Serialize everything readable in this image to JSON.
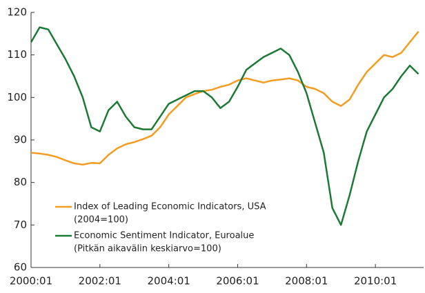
{
  "chart_data": {
    "type": "line",
    "x": [
      2000,
      2000.25,
      2000.5,
      2000.75,
      2001,
      2001.25,
      2001.5,
      2001.75,
      2002,
      2002.25,
      2002.5,
      2002.75,
      2003,
      2003.25,
      2003.5,
      2003.75,
      2004,
      2004.25,
      2004.5,
      2004.75,
      2005,
      2005.25,
      2005.5,
      2005.75,
      2006,
      2006.25,
      2006.5,
      2006.75,
      2007,
      2007.25,
      2007.5,
      2007.75,
      2008,
      2008.25,
      2008.5,
      2008.75,
      2009,
      2009.25,
      2009.5,
      2009.75,
      2010,
      2010.25,
      2010.5,
      2010.75,
      2011,
      2011.25
    ],
    "series": [
      {
        "name": "Index of Leading Economic Indicators, USA",
        "note": "(2004=100)",
        "color": "#f39c1f",
        "values": [
          87,
          86.8,
          86.5,
          86,
          85.2,
          84.5,
          84.2,
          84.6,
          84.5,
          86.5,
          88,
          89,
          89.5,
          90.2,
          91,
          93,
          96,
          98,
          100,
          100.8,
          101.5,
          101.8,
          102.5,
          103,
          104,
          104.5,
          104,
          103.5,
          104,
          104.2,
          104.5,
          104,
          102.5,
          102,
          101,
          99,
          98,
          99.5,
          103,
          106,
          108,
          110,
          109.5,
          110.5,
          113,
          115.5
        ]
      },
      {
        "name": "Economic Sentiment Indicator, Euroalue",
        "note": "(Pitkän aikavälin keskiarvo=100)",
        "color": "#1a7a34",
        "values": [
          113,
          116.5,
          116,
          112.5,
          109,
          105,
          100,
          93,
          92,
          97,
          99,
          95.5,
          93,
          92.5,
          92.5,
          95.5,
          98.5,
          99.5,
          100.5,
          101.5,
          101.5,
          100,
          97.5,
          99,
          102.5,
          106.5,
          108,
          109.5,
          110.5,
          111.5,
          110,
          106,
          101,
          94,
          87,
          74,
          70,
          77,
          85,
          92,
          96,
          100,
          102,
          105,
          107.5,
          105.5
        ]
      }
    ],
    "xlim": [
      2000,
      2011.4
    ],
    "xticks": [
      {
        "value": 2000,
        "label": "2000:01"
      },
      {
        "value": 2002,
        "label": "2002:01"
      },
      {
        "value": 2004,
        "label": "2004:01"
      },
      {
        "value": 2006,
        "label": "2006:01"
      },
      {
        "value": 2008,
        "label": "2008:01"
      },
      {
        "value": 2010,
        "label": "2010:01"
      }
    ],
    "ylim": [
      60,
      120
    ],
    "yticks": [
      60,
      70,
      80,
      90,
      100,
      110,
      120
    ],
    "grid": false
  }
}
